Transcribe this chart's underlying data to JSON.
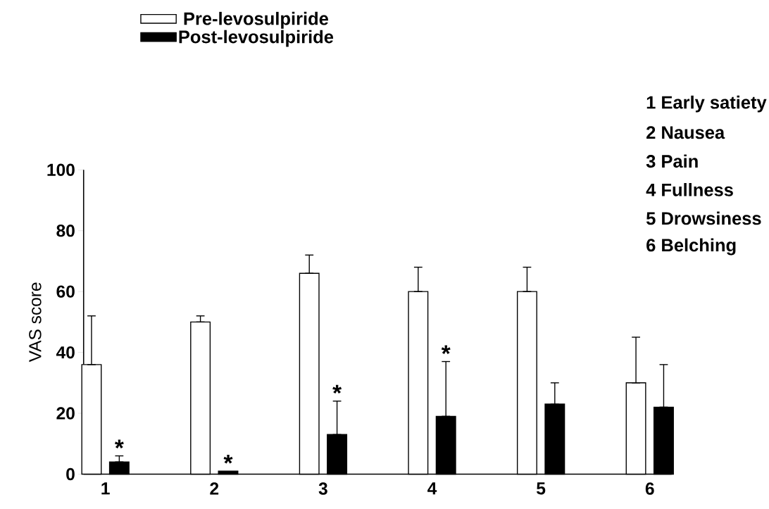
{
  "chart_data": {
    "type": "bar",
    "ylabel": "VAS score",
    "categories": [
      "1",
      "2",
      "3",
      "4",
      "5",
      "6"
    ],
    "series": [
      {
        "name": "Pre-levosulpiride",
        "color": "#ffffff",
        "values": [
          36,
          50,
          66,
          60,
          60,
          30
        ],
        "errors": [
          [
            36,
            52
          ],
          [
            50,
            52
          ],
          [
            66,
            72
          ],
          [
            60,
            68
          ],
          [
            60,
            68
          ],
          [
            30,
            45
          ]
        ]
      },
      {
        "name": "Post-levosulpiride",
        "color": "#000000",
        "values": [
          4,
          1,
          13,
          19,
          23,
          22
        ],
        "errors": [
          [
            4,
            6
          ],
          null,
          [
            13,
            24
          ],
          [
            19,
            37
          ],
          [
            23,
            30
          ],
          [
            22,
            36
          ]
        ]
      }
    ],
    "ylim": [
      0,
      100
    ],
    "yticks": [
      0,
      20,
      40,
      60,
      80,
      100
    ],
    "grid": false,
    "legend": "top left",
    "annotations": [
      "1 Early satiety",
      "2 Nausea",
      "3 Pain",
      "4 Fullness",
      "5 Drowsiness",
      "6 Belching",
      "*",
      "*",
      "*",
      "*"
    ]
  }
}
